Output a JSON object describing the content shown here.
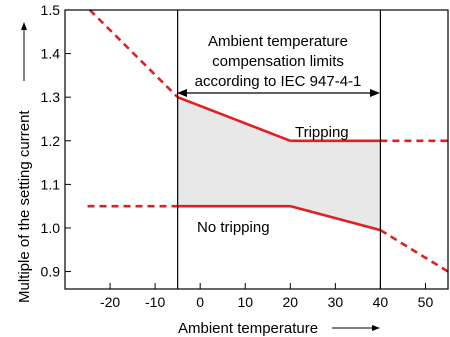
{
  "chart_data": {
    "type": "line",
    "xlabel": "Ambient temperature",
    "ylabel": "Multiple of the setting current",
    "xlim": [
      -30,
      55
    ],
    "ylim": [
      0.86,
      1.5
    ],
    "x_ticks": [
      "-20",
      "-10",
      "0",
      "10",
      "20",
      "30",
      "40",
      "50"
    ],
    "y_ticks": [
      "0.9",
      "1.0",
      "1.1",
      "1.2",
      "1.3",
      "1.4",
      "1.5"
    ],
    "grid": false,
    "compensation_limits": [
      -5,
      40
    ],
    "annotation_lines": [
      "Ambient temperature",
      "compensation limits",
      "according to IEC 947-4-1"
    ],
    "series": [
      {
        "name": "Tripping",
        "points": [
          [
            -24.5,
            1.5
          ],
          [
            -5,
            1.3
          ],
          [
            20,
            1.2
          ],
          [
            40,
            1.2
          ],
          [
            55,
            1.2
          ]
        ]
      },
      {
        "name": "No tripping",
        "points": [
          [
            -25,
            1.05
          ],
          [
            -5,
            1.05
          ],
          [
            20,
            1.05
          ],
          [
            40,
            0.995
          ],
          [
            55,
            0.9
          ]
        ]
      }
    ],
    "solid_range": [
      -5,
      40
    ],
    "color": "#e02020",
    "band_color": "#e8e8e8"
  }
}
